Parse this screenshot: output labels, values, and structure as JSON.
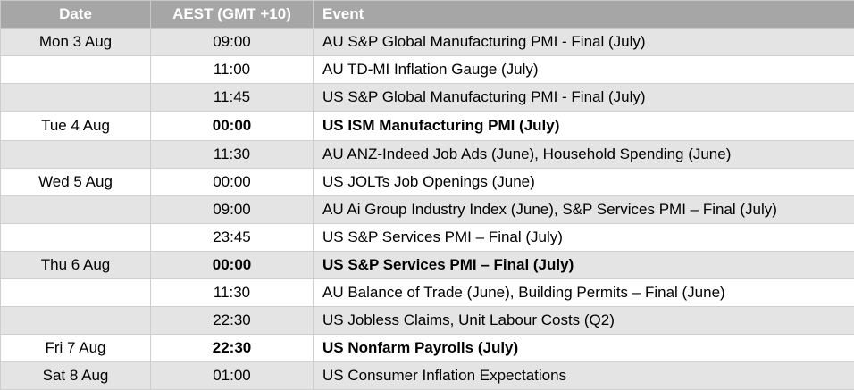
{
  "table": {
    "headers": {
      "date": "Date",
      "time": "AEST (GMT +10)",
      "event": "Event"
    },
    "rows": [
      {
        "date": "Mon 3 Aug",
        "time": "09:00",
        "event": "AU S&P Global Manufacturing PMI - Final (July)",
        "bold": false
      },
      {
        "date": "",
        "time": "11:00",
        "event": "AU TD-MI Inflation Gauge (July)",
        "bold": false
      },
      {
        "date": "",
        "time": "11:45",
        "event": "US S&P Global Manufacturing PMI - Final (July)",
        "bold": false
      },
      {
        "date": "Tue 4 Aug",
        "time": "00:00",
        "event": "US ISM Manufacturing PMI (July)",
        "bold": true
      },
      {
        "date": "",
        "time": "11:30",
        "event": "AU ANZ-Indeed Job Ads (June), Household Spending (June)",
        "bold": false
      },
      {
        "date": "Wed 5 Aug",
        "time": "00:00",
        "event": "US JOLTs Job Openings (June)",
        "bold": false
      },
      {
        "date": "",
        "time": "09:00",
        "event": "AU Ai Group Industry Index (June), S&P Services PMI – Final (July)",
        "bold": false
      },
      {
        "date": "",
        "time": "23:45",
        "event": "US S&P Services PMI – Final (July)",
        "bold": false
      },
      {
        "date": "Thu 6 Aug",
        "time": "00:00",
        "event": "US S&P Services PMI – Final (July)",
        "bold": true
      },
      {
        "date": "",
        "time": "11:30",
        "event": "AU Balance of Trade (June), Building Permits – Final (June)",
        "bold": false
      },
      {
        "date": "",
        "time": "22:30",
        "event": "US Jobless Claims, Unit Labour Costs (Q2)",
        "bold": false
      },
      {
        "date": "Fri 7 Aug",
        "time": "22:30",
        "event": "US Nonfarm Payrolls (July)",
        "bold": true
      },
      {
        "date": "Sat 8 Aug",
        "time": "01:00",
        "event": "US Consumer Inflation Expectations",
        "bold": false
      }
    ]
  },
  "colors": {
    "header_bg": "#a6a6a6",
    "shaded_row": "#e4e4e4",
    "plain_row": "#ffffff"
  }
}
